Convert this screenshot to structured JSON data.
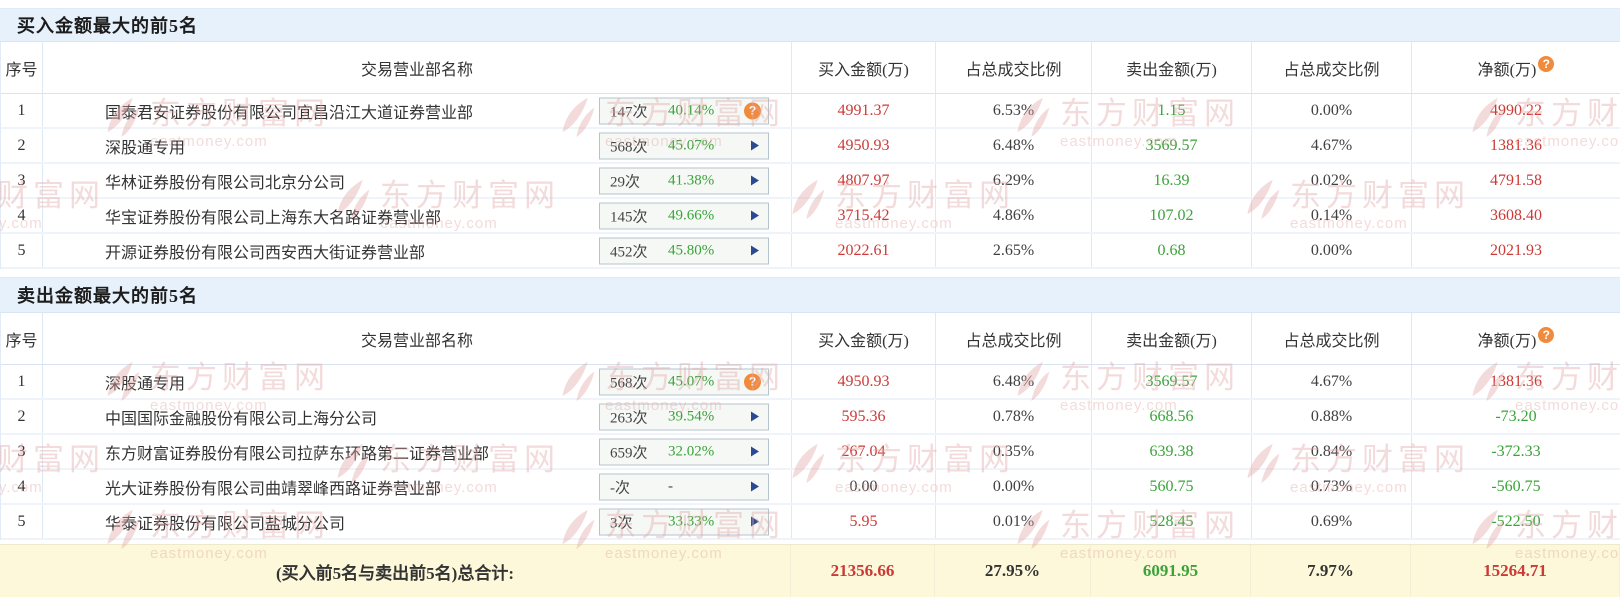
{
  "palette": {
    "red": "#cb3a36",
    "green": "#3aa33a",
    "dark": "#404040",
    "orange": "#f08a3c",
    "navy": "#2b4a8f"
  },
  "icons": {
    "help_glyph": "?"
  },
  "watermark": {
    "brand": "东方财富网",
    "domain": "eastmoney.com"
  },
  "sections": [
    {
      "title": "买入金额最大的前5名",
      "columns": [
        "序号",
        "交易营业部名称",
        "买入金额(万)",
        "占总成交比例",
        "卖出金额(万)",
        "占总成交比例",
        "净额(万)"
      ],
      "rows": [
        {
          "no": "1",
          "name": "国泰君安证券股份有限公司宜昌沿江大道证券营业部",
          "times": "147次",
          "pct": "40.14%",
          "badge_icon": "help",
          "values": [
            "4991.37",
            "6.53%",
            "1.15",
            "0.00%",
            "4990.22"
          ],
          "value_colors": [
            "red",
            "dark",
            "green",
            "dark",
            "red"
          ]
        },
        {
          "no": "2",
          "name": "深股通专用",
          "times": "568次",
          "pct": "45.07%",
          "badge_icon": "arrow",
          "values": [
            "4950.93",
            "6.48%",
            "3569.57",
            "4.67%",
            "1381.36"
          ],
          "value_colors": [
            "red",
            "dark",
            "green",
            "dark",
            "red"
          ]
        },
        {
          "no": "3",
          "name": "华林证券股份有限公司北京分公司",
          "times": "29次",
          "pct": "41.38%",
          "badge_icon": "arrow",
          "values": [
            "4807.97",
            "6.29%",
            "16.39",
            "0.02%",
            "4791.58"
          ],
          "value_colors": [
            "red",
            "dark",
            "green",
            "dark",
            "red"
          ]
        },
        {
          "no": "4",
          "name": "华宝证券股份有限公司上海东大名路证券营业部",
          "times": "145次",
          "pct": "49.66%",
          "badge_icon": "arrow",
          "values": [
            "3715.42",
            "4.86%",
            "107.02",
            "0.14%",
            "3608.40"
          ],
          "value_colors": [
            "red",
            "dark",
            "green",
            "dark",
            "red"
          ]
        },
        {
          "no": "5",
          "name": "开源证券股份有限公司西安西大街证券营业部",
          "times": "452次",
          "pct": "45.80%",
          "badge_icon": "arrow",
          "values": [
            "2022.61",
            "2.65%",
            "0.68",
            "0.00%",
            "2021.93"
          ],
          "value_colors": [
            "red",
            "dark",
            "green",
            "dark",
            "red"
          ]
        }
      ]
    },
    {
      "title": "卖出金额最大的前5名",
      "columns": [
        "序号",
        "交易营业部名称",
        "买入金额(万)",
        "占总成交比例",
        "卖出金额(万)",
        "占总成交比例",
        "净额(万)"
      ],
      "rows": [
        {
          "no": "1",
          "name": "深股通专用",
          "times": "568次",
          "pct": "45.07%",
          "badge_icon": "help",
          "values": [
            "4950.93",
            "6.48%",
            "3569.57",
            "4.67%",
            "1381.36"
          ],
          "value_colors": [
            "red",
            "dark",
            "green",
            "dark",
            "red"
          ]
        },
        {
          "no": "2",
          "name": "中国国际金融股份有限公司上海分公司",
          "times": "263次",
          "pct": "39.54%",
          "badge_icon": "arrow",
          "values": [
            "595.36",
            "0.78%",
            "668.56",
            "0.88%",
            "-73.20"
          ],
          "value_colors": [
            "red",
            "dark",
            "green",
            "dark",
            "green"
          ]
        },
        {
          "no": "3",
          "name": "东方财富证券股份有限公司拉萨东环路第二证券营业部",
          "times": "659次",
          "pct": "32.02%",
          "badge_icon": "arrow",
          "values": [
            "267.04",
            "0.35%",
            "639.38",
            "0.84%",
            "-372.33"
          ],
          "value_colors": [
            "red",
            "dark",
            "green",
            "dark",
            "green"
          ]
        },
        {
          "no": "4",
          "name": "光大证券股份有限公司曲靖翠峰西路证券营业部",
          "times": "-次",
          "pct": "-",
          "pct_color": "dark",
          "badge_icon": "arrow",
          "values": [
            "0.00",
            "0.00%",
            "560.75",
            "0.73%",
            "-560.75"
          ],
          "value_colors": [
            "dark",
            "dark",
            "green",
            "dark",
            "green"
          ]
        },
        {
          "no": "5",
          "name": "华泰证券股份有限公司盐城分公司",
          "times": "3次",
          "pct": "33.33%",
          "badge_icon": "arrow",
          "values": [
            "5.95",
            "0.01%",
            "528.45",
            "0.69%",
            "-522.50"
          ],
          "value_colors": [
            "red",
            "dark",
            "green",
            "dark",
            "green"
          ]
        }
      ]
    }
  ],
  "footer": {
    "label": "(买入前5名与卖出前5名)总合计:",
    "values": [
      "21356.66",
      "27.95%",
      "6091.95",
      "7.97%",
      "15264.71"
    ]
  }
}
